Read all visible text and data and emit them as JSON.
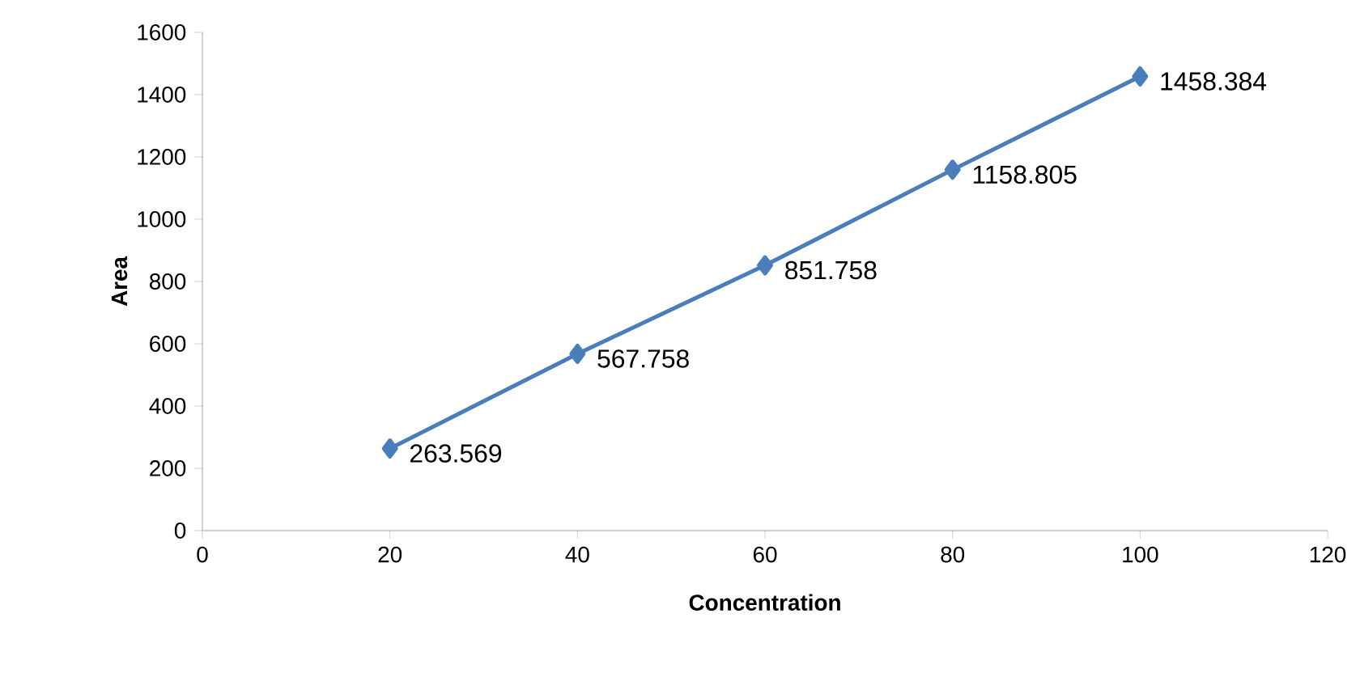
{
  "chart_data": {
    "type": "line",
    "xlabel": "Concentration",
    "ylabel": "Area",
    "x": [
      20,
      40,
      60,
      80,
      100
    ],
    "series": [
      {
        "color": "#4a7ebb",
        "values": [
          263.569,
          567.758,
          851.758,
          1158.805,
          1458.384
        ]
      }
    ],
    "xlim": [
      0,
      120
    ],
    "xticks": [
      0,
      20,
      40,
      60,
      80,
      100,
      120
    ],
    "ylim": [
      0,
      1600
    ],
    "yticks": [
      0,
      200,
      400,
      600,
      800,
      1000,
      1200,
      1400,
      1600
    ],
    "marker": "diamond",
    "line_style": "solid",
    "data_labels": true
  }
}
